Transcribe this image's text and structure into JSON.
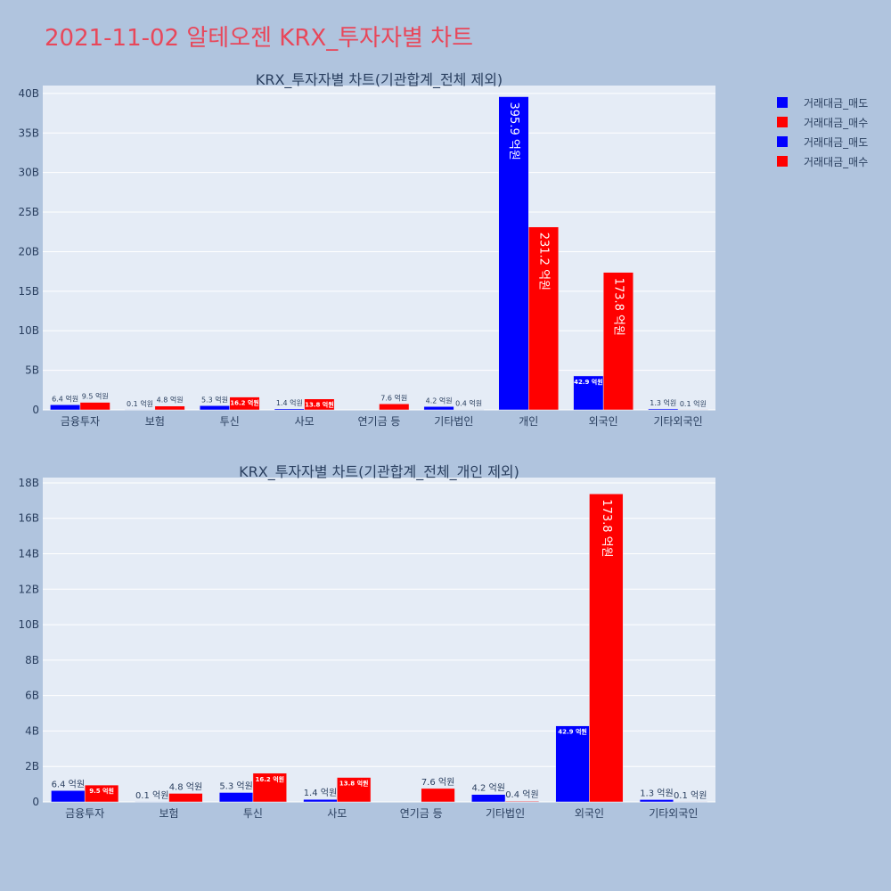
{
  "page": {
    "title": "2021-11-02 알테오젠 KRX_투자자별 차트"
  },
  "colors": {
    "sell": "#0000ff",
    "buy": "#ff0000",
    "plot_bg": "#e5ecf6",
    "page_bg": "#b0c4de",
    "title": "#e8475a"
  },
  "legend": {
    "items": [
      {
        "label": "거래대금_매도",
        "color": "#0000ff"
      },
      {
        "label": "거래대금_매수",
        "color": "#ff0000"
      },
      {
        "label": "거래대금_매도",
        "color": "#0000ff"
      },
      {
        "label": "거래대금_매수",
        "color": "#ff0000"
      }
    ]
  },
  "chart_data": [
    {
      "type": "bar",
      "title": "KRX_투자자별 차트(기관합계_전체 제외)",
      "categories": [
        "금융투자",
        "보험",
        "투신",
        "사모",
        "연기금 등",
        "기타법인",
        "개인",
        "외국인",
        "기타외국인"
      ],
      "series": [
        {
          "name": "거래대금_매도",
          "color": "#0000ff",
          "values": [
            0.64,
            0.01,
            0.53,
            0.14,
            0,
            0.42,
            39.59,
            4.29,
            0.13
          ],
          "labels": [
            "6.4 억원",
            "0.1 억원",
            "5.3 억원",
            "1.4 억원",
            "",
            "4.2 억원",
            "395.9 억원",
            "42.9 억원",
            "1.3 억원"
          ]
        },
        {
          "name": "거래대금_매수",
          "color": "#ff0000",
          "values": [
            0.95,
            0.48,
            1.62,
            1.38,
            0.76,
            0.04,
            23.12,
            17.38,
            0.01
          ],
          "labels": [
            "9.5 억원",
            "4.8 억원",
            "16.2 억원",
            "13.8 억원",
            "7.6 억원",
            "0.4 억원",
            "231.2 억원",
            "173.8 억원",
            "0.1 억원"
          ]
        }
      ],
      "yticks": [
        "0",
        "5B",
        "10B",
        "15B",
        "20B",
        "25B",
        "30B",
        "35B",
        "40B"
      ],
      "ylim": [
        0,
        41
      ],
      "grid": true,
      "legend_position": "top-right"
    },
    {
      "type": "bar",
      "title": "KRX_투자자별 차트(기관합계_전체_개인 제외)",
      "categories": [
        "금융투자",
        "보험",
        "투신",
        "사모",
        "연기금 등",
        "기타법인",
        "외국인",
        "기타외국인"
      ],
      "series": [
        {
          "name": "거래대금_매도",
          "color": "#0000ff",
          "values": [
            0.64,
            0.01,
            0.53,
            0.14,
            0,
            0.42,
            4.29,
            0.13
          ],
          "labels": [
            "6.4 억원",
            "0.1 억원",
            "5.3 억원",
            "1.4 억원",
            "",
            "4.2 억원",
            "42.9 억원",
            "1.3 억원"
          ]
        },
        {
          "name": "거래대금_매수",
          "color": "#ff0000",
          "values": [
            0.95,
            0.48,
            1.62,
            1.38,
            0.76,
            0.04,
            17.38,
            0.01
          ],
          "labels": [
            "9.5 억원",
            "4.8 억원",
            "16.2 억원",
            "13.8 억원",
            "7.6 억원",
            "0.4 억원",
            "173.8 억원",
            "0.1 억원"
          ]
        }
      ],
      "yticks": [
        "0",
        "2B",
        "4B",
        "6B",
        "8B",
        "10B",
        "12B",
        "14B",
        "16B",
        "18B"
      ],
      "ylim": [
        0,
        18.3
      ],
      "grid": true,
      "legend_position": "top-right"
    }
  ]
}
